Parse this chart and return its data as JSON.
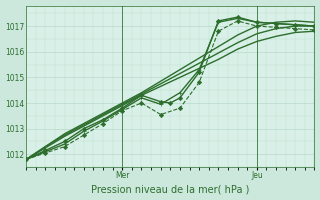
{
  "xlabel": "Pression niveau de la mer( hPa )",
  "bg_color": "#cce8dd",
  "plot_bg_color": "#d8f0e8",
  "grid_color": "#b0d4c4",
  "line_color": "#2d6e2d",
  "ylim": [
    1011.5,
    1017.8
  ],
  "xlim": [
    0,
    60
  ],
  "mer_x": 20,
  "jeu_x": 48,
  "yticks": [
    1012,
    1013,
    1014,
    1015,
    1016,
    1017
  ],
  "series": [
    {
      "x": [
        0,
        4,
        8,
        12,
        16,
        20,
        24,
        28,
        32,
        36,
        40,
        44,
        48,
        52,
        56,
        60
      ],
      "y": [
        1011.8,
        1012.3,
        1012.8,
        1013.2,
        1013.6,
        1014.0,
        1014.4,
        1014.85,
        1015.3,
        1015.75,
        1016.2,
        1016.65,
        1017.0,
        1017.15,
        1017.2,
        1017.15
      ],
      "marker": null,
      "linestyle": "-",
      "linewidth": 1.0
    },
    {
      "x": [
        0,
        4,
        8,
        12,
        16,
        20,
        24,
        28,
        32,
        36,
        40,
        44,
        48,
        52,
        56,
        60
      ],
      "y": [
        1011.8,
        1012.3,
        1012.75,
        1013.15,
        1013.55,
        1013.95,
        1014.35,
        1014.75,
        1015.15,
        1015.55,
        1015.95,
        1016.35,
        1016.7,
        1016.9,
        1017.0,
        1017.0
      ],
      "marker": null,
      "linestyle": "-",
      "linewidth": 1.0
    },
    {
      "x": [
        0,
        4,
        8,
        12,
        16,
        20,
        24,
        28,
        32,
        36,
        40,
        44,
        48,
        52,
        56,
        60
      ],
      "y": [
        1011.8,
        1012.25,
        1012.7,
        1013.1,
        1013.5,
        1013.9,
        1014.3,
        1014.65,
        1015.0,
        1015.35,
        1015.7,
        1016.1,
        1016.4,
        1016.6,
        1016.75,
        1016.8
      ],
      "marker": null,
      "linestyle": "-",
      "linewidth": 1.0
    },
    {
      "x": [
        0,
        4,
        8,
        12,
        16,
        20,
        24,
        28,
        30,
        32,
        36,
        40,
        44,
        48,
        52,
        56,
        60
      ],
      "y": [
        1011.8,
        1012.15,
        1012.5,
        1013.0,
        1013.35,
        1013.8,
        1014.3,
        1014.05,
        1014.0,
        1014.2,
        1015.2,
        1017.2,
        1017.35,
        1017.15,
        1017.1,
        1017.05,
        1017.0
      ],
      "marker": "D",
      "linestyle": "-",
      "linewidth": 1.0,
      "markersize": 2.2
    },
    {
      "x": [
        0,
        4,
        8,
        12,
        16,
        20,
        24,
        28,
        32,
        36,
        40,
        44,
        48,
        52,
        56,
        60
      ],
      "y": [
        1011.8,
        1012.1,
        1012.4,
        1012.9,
        1013.3,
        1013.75,
        1014.2,
        1013.95,
        1014.4,
        1015.3,
        1017.15,
        1017.3,
        1017.15,
        1017.1,
        1017.05,
        1017.0
      ],
      "marker": "+",
      "linestyle": "-",
      "linewidth": 1.0,
      "markersize": 3.5
    },
    {
      "x": [
        0,
        4,
        8,
        12,
        16,
        20,
        24,
        28,
        32,
        36,
        40,
        44,
        48,
        52,
        56,
        60
      ],
      "y": [
        1011.8,
        1012.05,
        1012.3,
        1012.75,
        1013.2,
        1013.7,
        1014.0,
        1013.55,
        1013.8,
        1014.8,
        1016.8,
        1017.2,
        1017.0,
        1016.95,
        1016.9,
        1016.85
      ],
      "marker": "D",
      "linestyle": "--",
      "linewidth": 0.8,
      "markersize": 2.2
    }
  ]
}
